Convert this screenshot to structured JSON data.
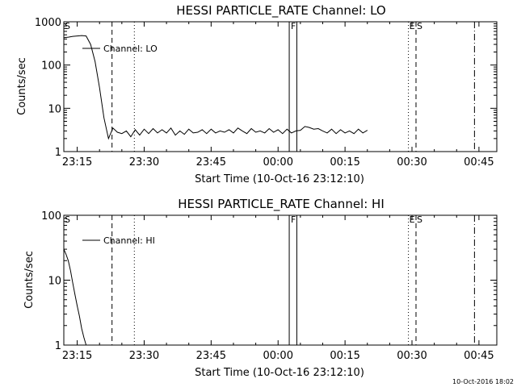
{
  "chart_data": [
    {
      "type": "line",
      "title": "HESSI PARTICLE_RATE Channel: LO",
      "xlabel": "Start Time (10-Oct-16 23:12:10)",
      "ylabel": "Counts/sec",
      "yscale": "log",
      "ylim": [
        1,
        1000
      ],
      "xlim_min_after_start": [
        0,
        97
      ],
      "x_ticks": [
        "23:15",
        "23:30",
        "23:45",
        "00:00",
        "00:15",
        "00:30",
        "00:45"
      ],
      "y_ticks": [
        "1",
        "10",
        "100",
        "1000"
      ],
      "legend": "Channel: LO",
      "marker_labels": {
        "s": "S",
        "f": "F",
        "e": "E",
        "s2": "S"
      },
      "series": [
        {
          "name": "Channel: LO",
          "x": [
            0,
            1,
            2,
            3,
            4,
            5,
            6,
            7,
            8,
            9,
            10,
            11,
            12,
            13,
            14,
            15,
            16,
            17,
            18,
            19,
            20,
            21,
            22,
            23,
            24,
            25,
            26,
            27,
            28,
            29,
            30,
            31,
            32,
            33,
            34,
            35,
            36,
            37,
            38,
            39,
            40,
            41,
            42,
            43,
            44,
            45,
            46,
            47,
            48,
            49,
            50,
            51,
            52,
            53,
            54,
            55,
            56,
            57,
            58,
            59,
            60,
            61,
            62,
            63,
            64,
            65,
            66,
            67,
            68
          ],
          "y": [
            430,
            440,
            460,
            470,
            480,
            470,
            300,
            120,
            30,
            6,
            2,
            3.5,
            2.8,
            2.6,
            3,
            2.2,
            3.2,
            2.4,
            3.3,
            2.6,
            3.4,
            2.7,
            3.2,
            2.7,
            3.5,
            2.4,
            3,
            2.5,
            3.3,
            2.7,
            2.8,
            3.2,
            2.6,
            3.3,
            2.7,
            3,
            2.8,
            3.2,
            2.7,
            3.5,
            3,
            2.6,
            3.4,
            2.8,
            3,
            2.7,
            3.4,
            2.8,
            3.2,
            2.6,
            3.3,
            2.7,
            3,
            3.1,
            3.8,
            3.6,
            3.3,
            3.4,
            3,
            2.7,
            3.3,
            2.6,
            3.2,
            2.7,
            3,
            2.6,
            3.3,
            2.7,
            3.1
          ]
        }
      ]
    },
    {
      "type": "line",
      "title": "HESSI PARTICLE_RATE Channel: HI",
      "xlabel": "Start Time (10-Oct-16 23:12:10)",
      "ylabel": "Counts/sec",
      "yscale": "log",
      "ylim": [
        1,
        100
      ],
      "xlim_min_after_start": [
        0,
        97
      ],
      "x_ticks": [
        "23:15",
        "23:30",
        "23:45",
        "00:00",
        "00:15",
        "00:30",
        "00:45"
      ],
      "y_ticks": [
        "1",
        "10",
        "100"
      ],
      "legend": "Channel: HI",
      "marker_labels": {
        "s": "S",
        "f": "F",
        "e": "E",
        "s2": "S"
      },
      "series": [
        {
          "name": "Channel: HI",
          "x": [
            0,
            0.5,
            1,
            1.5,
            2,
            2.5,
            3,
            3.5,
            4,
            4.5,
            5
          ],
          "y": [
            30,
            25,
            20,
            14,
            9,
            6,
            4,
            2.8,
            1.8,
            1.3,
            1
          ]
        }
      ]
    }
  ],
  "timestamp": "10-Oct-2016 18:02"
}
